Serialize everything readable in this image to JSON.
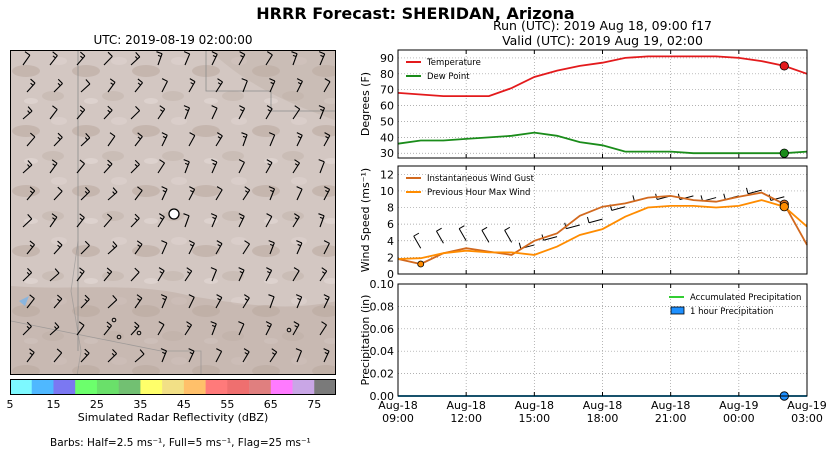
{
  "header": {
    "title": "HRRR Forecast: SHERIDAN, Arizona",
    "map_time": "UTC: 2019-08-19 02:00:00",
    "run_line": "Run (UTC): 2019 Aug 18, 09:00 f17",
    "valid_line": "Valid (UTC): 2019 Aug 19, 02:00"
  },
  "colorbar": {
    "label": "Simulated Radar Reflectivity (dBZ)",
    "ticks": [
      "5",
      "15",
      "25",
      "35",
      "45",
      "55",
      "65",
      "75"
    ],
    "colors": [
      "#7df9ff",
      "#4fb8ff",
      "#7b78f2",
      "#6cff6c",
      "#6ae06a",
      "#72c072",
      "#ffff6a",
      "#f2e086",
      "#ffc06a",
      "#ff7a7a",
      "#ef6f6f",
      "#e07f7f",
      "#ff7aff",
      "#c9a6e6",
      "#7a7a7a"
    ]
  },
  "barb_note": "Barbs: Half=2.5 ms⁻¹, Full=5 ms⁻¹, Flag=25 ms⁻¹",
  "chart_data": [
    {
      "type": "line",
      "ylabel": "Degrees (F)",
      "ylim": [
        27,
        95
      ],
      "yticks": [
        "90",
        "80",
        "70",
        "60",
        "50",
        "40",
        "30"
      ],
      "legend": "top-left",
      "x": [
        "Aug-18 09:00",
        "Aug-18 10:00",
        "Aug-18 11:00",
        "Aug-18 12:00",
        "Aug-18 13:00",
        "Aug-18 14:00",
        "Aug-18 15:00",
        "Aug-18 16:00",
        "Aug-18 17:00",
        "Aug-18 18:00",
        "Aug-18 19:00",
        "Aug-18 20:00",
        "Aug-18 21:00",
        "Aug-18 22:00",
        "Aug-18 23:00",
        "Aug-19 00:00",
        "Aug-19 01:00",
        "Aug-19 02:00",
        "Aug-19 03:00"
      ],
      "series": [
        {
          "name": "Temperature",
          "color": "#e31a1c",
          "values": [
            68,
            67,
            66,
            66,
            66,
            71,
            78,
            82,
            85,
            87,
            90,
            91,
            91,
            91,
            91,
            90,
            88,
            85,
            80
          ]
        },
        {
          "name": "Dew Point",
          "color": "#1a8c1a",
          "values": [
            36,
            38,
            38,
            39,
            40,
            41,
            43,
            41,
            37,
            35,
            31,
            31,
            31,
            30,
            30,
            30,
            30,
            30,
            31
          ]
        }
      ],
      "marker_x": "Aug-19 02:00",
      "grid": true
    },
    {
      "type": "line",
      "ylabel": "Wind Speed (ms⁻¹)",
      "ylim": [
        0,
        13
      ],
      "yticks": [
        "12",
        "10",
        "8",
        "6",
        "4",
        "2",
        "0"
      ],
      "legend": "top-left",
      "x": [
        "Aug-18 09:00",
        "Aug-18 10:00",
        "Aug-18 11:00",
        "Aug-18 12:00",
        "Aug-18 13:00",
        "Aug-18 14:00",
        "Aug-18 15:00",
        "Aug-18 16:00",
        "Aug-18 17:00",
        "Aug-18 18:00",
        "Aug-18 19:00",
        "Aug-18 20:00",
        "Aug-18 21:00",
        "Aug-18 22:00",
        "Aug-18 23:00",
        "Aug-19 00:00",
        "Aug-19 01:00",
        "Aug-19 02:00",
        "Aug-19 03:00"
      ],
      "series": [
        {
          "name": "Instantaneous Wind Gust",
          "color": "#d2691e",
          "values": [
            1.8,
            1.2,
            2.5,
            3.1,
            2.7,
            2.3,
            4.0,
            4.9,
            7.0,
            8.1,
            8.5,
            9.2,
            9.4,
            8.9,
            8.7,
            9.3,
            9.8,
            8.4,
            3.5
          ]
        },
        {
          "name": "Previous Hour Max Wind",
          "color": "#ff8c00",
          "values": [
            1.8,
            1.9,
            2.5,
            2.8,
            2.6,
            2.6,
            2.3,
            3.3,
            4.7,
            5.4,
            6.9,
            8.0,
            8.2,
            8.2,
            8.0,
            8.2,
            8.9,
            8.1,
            5.7
          ]
        }
      ],
      "marker_x": "Aug-19 02:00",
      "grid": true
    },
    {
      "type": "line",
      "ylabel": "Precipitation (in)",
      "ylim": [
        0,
        0.1
      ],
      "yticks": [
        "0.10",
        "0.08",
        "0.06",
        "0.04",
        "0.02",
        "0.00"
      ],
      "legend": "top-right",
      "x_tick_labels": [
        [
          "Aug-18",
          "09:00"
        ],
        [
          "Aug-18",
          "12:00"
        ],
        [
          "Aug-18",
          "15:00"
        ],
        [
          "Aug-18",
          "18:00"
        ],
        [
          "Aug-18",
          "21:00"
        ],
        [
          "Aug-19",
          "00:00"
        ],
        [
          "Aug-19",
          "03:00"
        ]
      ],
      "series": [
        {
          "name": "Accumulated Precipitation",
          "color": "#32cd32",
          "values": [
            0,
            0,
            0,
            0,
            0,
            0,
            0,
            0,
            0,
            0,
            0,
            0,
            0,
            0,
            0,
            0,
            0,
            0,
            0
          ]
        },
        {
          "name": "1 hour Precipitation",
          "color": "#1e90ff",
          "values": [
            0,
            0,
            0,
            0,
            0,
            0,
            0,
            0,
            0,
            0,
            0,
            0,
            0,
            0,
            0,
            0,
            0,
            0,
            0
          ]
        }
      ],
      "marker_x": "Aug-19 02:00",
      "grid": true
    }
  ]
}
